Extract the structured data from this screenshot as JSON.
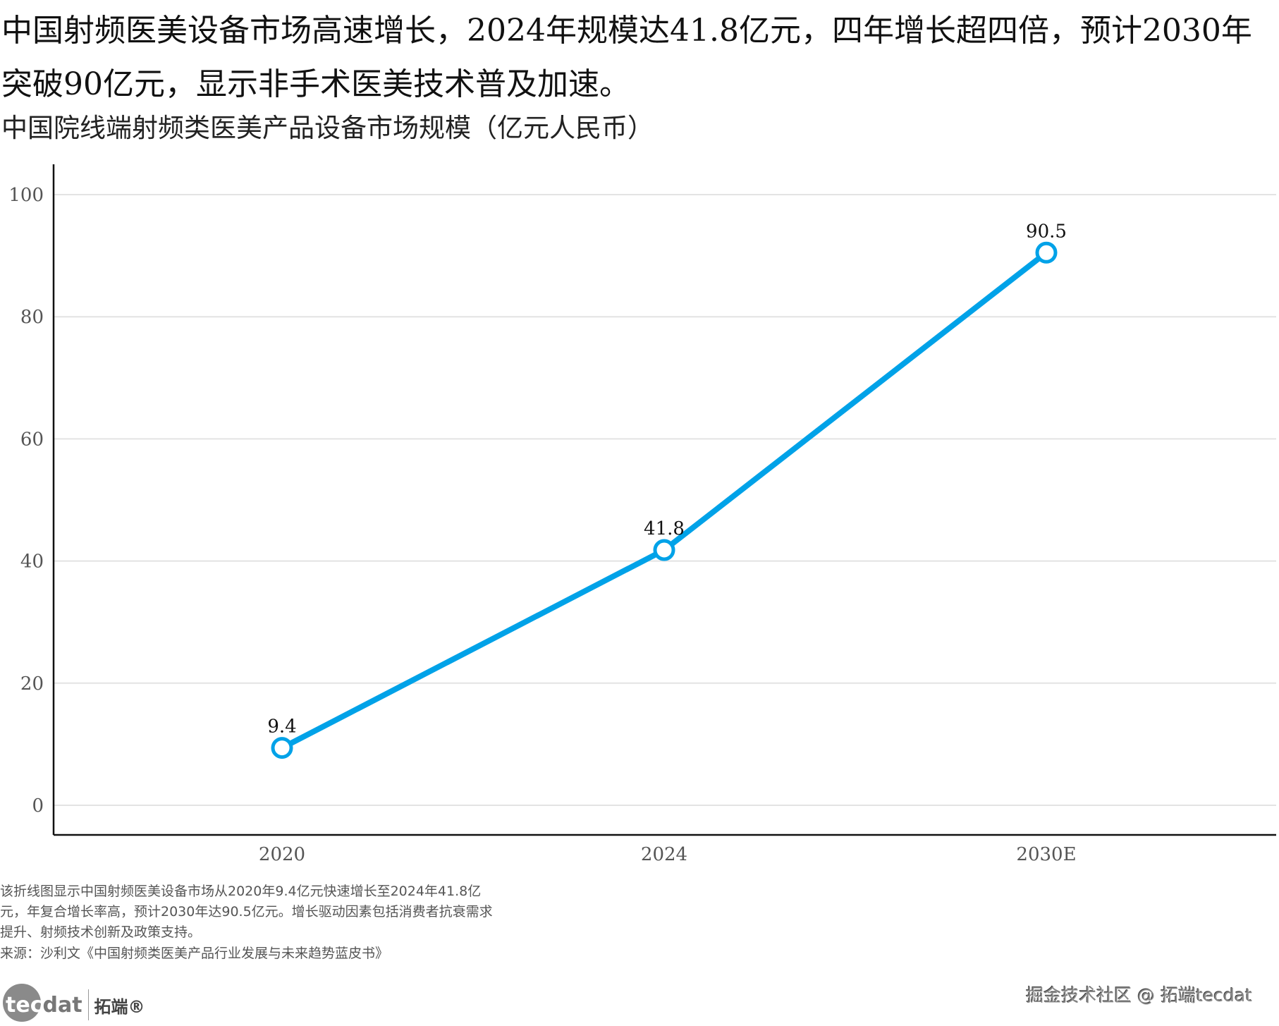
{
  "header": {
    "title": "中国射频医美设备市场高速增长，2024年规模达41.8亿元，四年增长超四倍，预计2030年突破90亿元，显示非手术医美技术普及加速。"
  },
  "chart_data": {
    "type": "line",
    "title": "中国院线端射频类医美产品设备市场规模（亿元人民币）",
    "xlabel": "",
    "ylabel": "",
    "categories": [
      "2020",
      "2024",
      "2030E"
    ],
    "values": [
      9.4,
      41.8,
      90.5
    ],
    "data_labels": [
      "9.4",
      "41.8",
      "90.5"
    ],
    "ylim": [
      0,
      100
    ],
    "yticks": [
      0,
      20,
      40,
      60,
      80,
      100
    ],
    "ytick_labels": [
      "0",
      "20",
      "40",
      "60",
      "80",
      "100"
    ],
    "grid": true,
    "line_color": "#00a2e8"
  },
  "footer": {
    "caption": "该折线图显示中国射频医美设备市场从2020年9.4亿元快速增长至2024年41.8亿元，年复合增长率高，预计2030年达90.5亿元。增长驱动因素包括消费者抗衰需求提升、射频技术创新及政策支持。",
    "source": "来源：沙利文《中国射频类医美产品行业发展与未来趋势蓝皮书》",
    "logo_text": "tecdat 拓端®",
    "watermark": "掘金技术社区 @ 拓端tecdat"
  }
}
